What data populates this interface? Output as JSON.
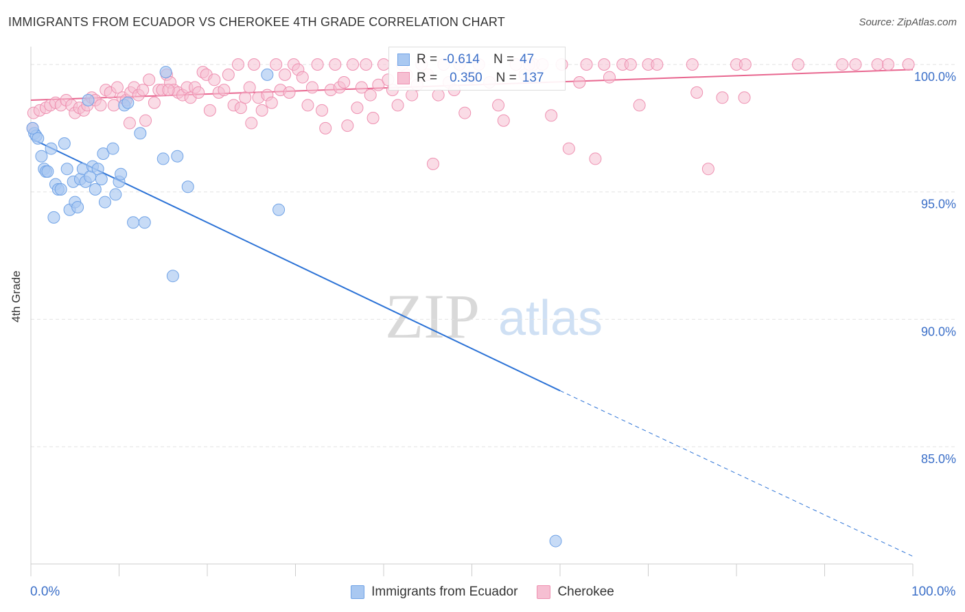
{
  "title": "IMMIGRANTS FROM ECUADOR VS CHEROKEE 4TH GRADE CORRELATION CHART",
  "source": "Source: ZipAtlas.com",
  "watermark": {
    "zip": "ZIP",
    "atlas": "atlas"
  },
  "colors": {
    "blue": "#6fa2e6",
    "blue_fill": "#a9c8f1",
    "blue_line": "#2b72d6",
    "pink": "#ee8fb0",
    "pink_fill": "#f6bfd2",
    "pink_line": "#e8668f",
    "tick_label": "#3b6fc8",
    "grid": "#e2e2e2"
  },
  "legend_top": {
    "rows": [
      {
        "r_label": "R =",
        "r_value": "-0.614",
        "n_label": "N =",
        "n_value": "47"
      },
      {
        "r_label": "R =",
        "r_value": "0.350",
        "n_label": "N =",
        "n_value": "137"
      }
    ]
  },
  "legend_bottom": {
    "series1": "Immigrants from Ecuador",
    "series2": "Cherokee"
  },
  "chart_data": {
    "type": "scatter",
    "title": "IMMIGRANTS FROM ECUADOR VS CHEROKEE 4TH GRADE CORRELATION CHART",
    "xlabel": "",
    "ylabel": "4th Grade",
    "xlim": [
      0,
      100
    ],
    "ylim": [
      80.4,
      100.7
    ],
    "x_tick_labels": [
      "0.0%",
      "100.0%"
    ],
    "y_ticks": [
      100,
      95,
      90,
      85
    ],
    "y_tick_labels": [
      "100.0%",
      "95.0%",
      "90.0%",
      "85.0%"
    ],
    "grid": true,
    "legend_position": "bottom-center",
    "series": [
      {
        "name": "Immigrants from Ecuador",
        "r": -0.614,
        "n": 47,
        "trend": {
          "x0": 0,
          "y0": 97.1,
          "x1": 60,
          "y1": 87.2,
          "dash_to_x": 100,
          "dash_to_y": 80.7
        },
        "points": [
          [
            0.4,
            97.3
          ],
          [
            0.6,
            97.2
          ],
          [
            0.8,
            97.1
          ],
          [
            1.2,
            96.4
          ],
          [
            1.5,
            95.9
          ],
          [
            1.7,
            95.8
          ],
          [
            1.9,
            95.8
          ],
          [
            2.3,
            96.7
          ],
          [
            2.6,
            94.0
          ],
          [
            2.8,
            95.3
          ],
          [
            3.1,
            95.1
          ],
          [
            3.4,
            95.1
          ],
          [
            3.8,
            96.9
          ],
          [
            4.1,
            95.9
          ],
          [
            4.4,
            94.3
          ],
          [
            4.8,
            95.4
          ],
          [
            5.0,
            94.6
          ],
          [
            5.3,
            94.4
          ],
          [
            5.6,
            95.5
          ],
          [
            5.9,
            95.9
          ],
          [
            6.2,
            95.4
          ],
          [
            6.5,
            98.6
          ],
          [
            6.7,
            95.6
          ],
          [
            7.0,
            96.0
          ],
          [
            7.3,
            95.1
          ],
          [
            7.6,
            95.9
          ],
          [
            8.0,
            95.5
          ],
          [
            8.2,
            96.5
          ],
          [
            8.4,
            94.6
          ],
          [
            9.3,
            96.7
          ],
          [
            9.6,
            94.9
          ],
          [
            10.0,
            95.4
          ],
          [
            10.2,
            95.7
          ],
          [
            10.6,
            98.4
          ],
          [
            11.0,
            98.5
          ],
          [
            11.6,
            93.8
          ],
          [
            12.4,
            97.3
          ],
          [
            12.9,
            93.8
          ],
          [
            15.0,
            96.3
          ],
          [
            15.3,
            99.7
          ],
          [
            16.1,
            91.7
          ],
          [
            16.6,
            96.4
          ],
          [
            17.8,
            95.2
          ],
          [
            26.8,
            99.6
          ],
          [
            28.1,
            94.3
          ],
          [
            59.5,
            81.3
          ],
          [
            0.2,
            97.5
          ]
        ]
      },
      {
        "name": "Cherokee",
        "r": 0.35,
        "n": 137,
        "trend": {
          "x0": 0,
          "y0": 98.6,
          "x1": 100,
          "y1": 99.8
        },
        "points": [
          [
            0.3,
            98.1
          ],
          [
            1.0,
            98.2
          ],
          [
            1.7,
            98.3
          ],
          [
            2.2,
            98.4
          ],
          [
            2.8,
            98.5
          ],
          [
            3.4,
            98.4
          ],
          [
            4.0,
            98.6
          ],
          [
            4.6,
            98.4
          ],
          [
            5.0,
            98.1
          ],
          [
            5.5,
            98.3
          ],
          [
            6.0,
            98.2
          ],
          [
            6.4,
            98.4
          ],
          [
            6.9,
            98.7
          ],
          [
            7.3,
            98.6
          ],
          [
            7.9,
            98.4
          ],
          [
            8.5,
            99.0
          ],
          [
            9.0,
            98.9
          ],
          [
            9.4,
            98.4
          ],
          [
            9.8,
            99.1
          ],
          [
            10.4,
            98.7
          ],
          [
            10.8,
            98.6
          ],
          [
            11.3,
            98.9
          ],
          [
            11.7,
            99.1
          ],
          [
            12.2,
            98.8
          ],
          [
            12.7,
            99.0
          ],
          [
            13.0,
            97.8
          ],
          [
            13.4,
            99.4
          ],
          [
            14.0,
            98.5
          ],
          [
            14.5,
            99.0
          ],
          [
            14.9,
            99.0
          ],
          [
            15.4,
            99.6
          ],
          [
            15.8,
            99.3
          ],
          [
            16.2,
            99.0
          ],
          [
            16.7,
            98.9
          ],
          [
            17.2,
            98.8
          ],
          [
            17.7,
            99.1
          ],
          [
            18.1,
            98.7
          ],
          [
            18.6,
            99.1
          ],
          [
            19.0,
            98.9
          ],
          [
            19.5,
            99.7
          ],
          [
            19.9,
            99.6
          ],
          [
            20.3,
            98.2
          ],
          [
            20.8,
            99.4
          ],
          [
            21.3,
            98.9
          ],
          [
            21.9,
            99.0
          ],
          [
            22.4,
            99.6
          ],
          [
            23.0,
            98.4
          ],
          [
            23.5,
            100.0
          ],
          [
            23.8,
            98.3
          ],
          [
            24.3,
            98.7
          ],
          [
            24.8,
            99.1
          ],
          [
            25.3,
            100.0
          ],
          [
            25.8,
            98.7
          ],
          [
            26.2,
            98.2
          ],
          [
            26.8,
            98.8
          ],
          [
            27.3,
            98.5
          ],
          [
            27.8,
            100.0
          ],
          [
            28.3,
            99.0
          ],
          [
            28.8,
            99.6
          ],
          [
            29.3,
            98.9
          ],
          [
            29.8,
            100.0
          ],
          [
            30.3,
            99.8
          ],
          [
            30.8,
            99.5
          ],
          [
            31.4,
            98.4
          ],
          [
            31.9,
            99.1
          ],
          [
            32.5,
            100.0
          ],
          [
            33.0,
            98.2
          ],
          [
            33.4,
            97.5
          ],
          [
            34.0,
            99.0
          ],
          [
            34.5,
            100.0
          ],
          [
            35.0,
            99.1
          ],
          [
            35.5,
            99.3
          ],
          [
            35.9,
            97.6
          ],
          [
            36.5,
            100.0
          ],
          [
            37.0,
            98.3
          ],
          [
            37.5,
            99.1
          ],
          [
            38.0,
            100.0
          ],
          [
            38.5,
            98.8
          ],
          [
            38.8,
            97.9
          ],
          [
            39.4,
            99.2
          ],
          [
            40.0,
            100.0
          ],
          [
            40.5,
            99.4
          ],
          [
            41.0,
            99.0
          ],
          [
            41.6,
            98.4
          ],
          [
            42.1,
            100.0
          ],
          [
            42.6,
            99.6
          ],
          [
            43.2,
            98.8
          ],
          [
            43.8,
            99.2
          ],
          [
            44.3,
            100.0
          ],
          [
            45.0,
            99.6
          ],
          [
            45.6,
            96.1
          ],
          [
            46.2,
            98.8
          ],
          [
            46.8,
            100.0
          ],
          [
            47.4,
            99.3
          ],
          [
            48.0,
            99.0
          ],
          [
            48.6,
            100.0
          ],
          [
            49.2,
            98.1
          ],
          [
            50.0,
            99.5
          ],
          [
            50.8,
            100.0
          ],
          [
            52.0,
            99.3
          ],
          [
            53.0,
            98.4
          ],
          [
            53.6,
            97.8
          ],
          [
            55.0,
            100.0
          ],
          [
            56.0,
            99.6
          ],
          [
            57.0,
            100.0
          ],
          [
            58.0,
            100.0
          ],
          [
            59.0,
            98.0
          ],
          [
            60.2,
            100.0
          ],
          [
            61.0,
            96.7
          ],
          [
            62.2,
            99.3
          ],
          [
            63.0,
            100.0
          ],
          [
            64.0,
            96.3
          ],
          [
            65.0,
            100.0
          ],
          [
            65.6,
            99.5
          ],
          [
            67.1,
            100.0
          ],
          [
            68.0,
            100.0
          ],
          [
            69.0,
            98.4
          ],
          [
            70.0,
            100.0
          ],
          [
            71.0,
            100.0
          ],
          [
            75.0,
            100.0
          ],
          [
            75.5,
            98.9
          ],
          [
            76.8,
            95.9
          ],
          [
            78.4,
            98.7
          ],
          [
            80.0,
            100.0
          ],
          [
            80.9,
            98.7
          ],
          [
            81.0,
            100.0
          ],
          [
            87.0,
            100.0
          ],
          [
            92.0,
            100.0
          ],
          [
            93.5,
            100.0
          ],
          [
            96.0,
            100.0
          ],
          [
            97.2,
            100.0
          ],
          [
            99.5,
            100.0
          ],
          [
            56.5,
            100.0
          ],
          [
            25.0,
            97.7
          ],
          [
            15.6,
            99.0
          ],
          [
            11.2,
            97.7
          ],
          [
            0.2,
            97.5
          ]
        ]
      }
    ]
  }
}
